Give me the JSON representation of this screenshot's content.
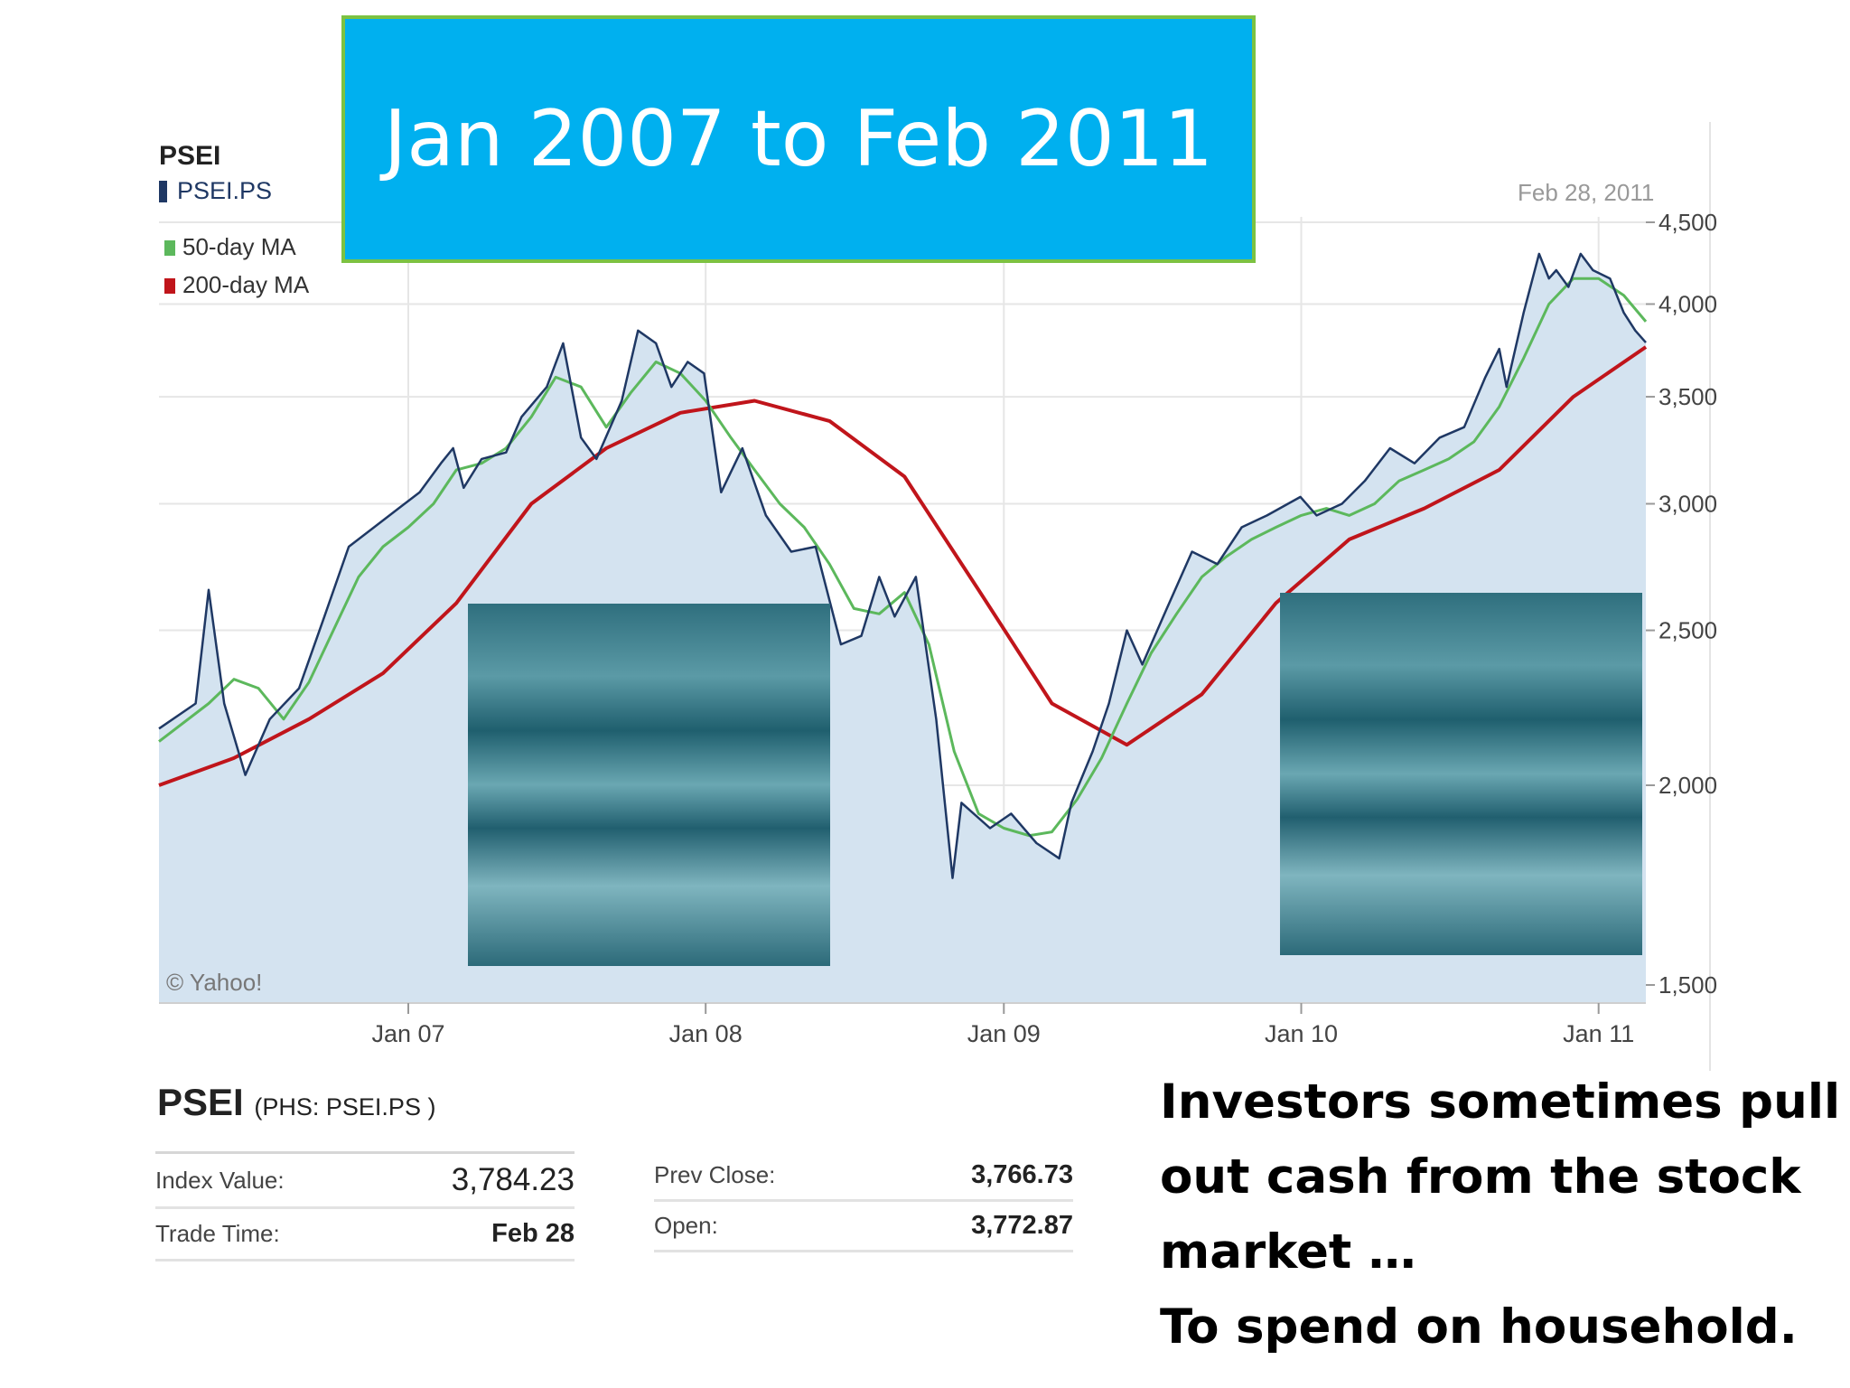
{
  "slide": {
    "title": "Jan 2007 to Feb 2011",
    "caption_lines": [
      "Investors sometimes pull",
      "out cash from the stock",
      "market …",
      "To spend on household."
    ]
  },
  "chart_header": {
    "ticker": "PSEI",
    "symbol": "PSEI.PS",
    "date": "Feb 28, 2011",
    "credit": "© Yahoo!"
  },
  "quote": {
    "name": "PSEI",
    "exchange": "(PHS: PSEI.PS )",
    "index_value_label": "Index Value:",
    "index_value": "3,784.23",
    "trade_time_label": "Trade Time:",
    "trade_time": "Feb 28",
    "prev_close_label": "Prev Close:",
    "prev_close": "3,766.73",
    "open_label": "Open:",
    "open": "3,772.87"
  },
  "chart_data": {
    "type": "line",
    "title": "PSEI",
    "x_tick_labels": [
      "Jan 07",
      "Jan 08",
      "Jan 09",
      "Jan 10",
      "Jan 11"
    ],
    "y_tick_labels": [
      "1,500",
      "2,000",
      "2,500",
      "3,000",
      "3,500",
      "4,000",
      "4,500"
    ],
    "y_ticks": [
      1500,
      2000,
      2500,
      3000,
      3500,
      4000,
      4500
    ],
    "ylim": [
      1500,
      4500
    ],
    "y_scale": "log",
    "xlim": [
      "2006-03-01",
      "2011-02-28"
    ],
    "grid": true,
    "legend_position": "top-left",
    "colors": {
      "price": "#1f3864",
      "ma50": "#5cb85c",
      "ma200": "#c0151b",
      "fill": "#d4e3f0"
    },
    "series": [
      {
        "name": "PSEI.PS",
        "color": "#1f3864",
        "points": [
          [
            "2006-03-01",
            2170
          ],
          [
            "2006-04-15",
            2250
          ],
          [
            "2006-05-01",
            2650
          ],
          [
            "2006-05-20",
            2250
          ],
          [
            "2006-06-15",
            2030
          ],
          [
            "2006-07-15",
            2200
          ],
          [
            "2006-08-20",
            2300
          ],
          [
            "2006-09-20",
            2550
          ],
          [
            "2006-10-20",
            2820
          ],
          [
            "2006-11-20",
            2900
          ],
          [
            "2006-12-20",
            2980
          ],
          [
            "2007-01-15",
            3050
          ],
          [
            "2007-02-10",
            3180
          ],
          [
            "2007-02-25",
            3250
          ],
          [
            "2007-03-10",
            3070
          ],
          [
            "2007-04-01",
            3200
          ],
          [
            "2007-05-01",
            3230
          ],
          [
            "2007-05-20",
            3400
          ],
          [
            "2007-06-20",
            3550
          ],
          [
            "2007-07-10",
            3780
          ],
          [
            "2007-08-01",
            3300
          ],
          [
            "2007-08-20",
            3200
          ],
          [
            "2007-09-20",
            3480
          ],
          [
            "2007-10-10",
            3850
          ],
          [
            "2007-11-01",
            3780
          ],
          [
            "2007-11-20",
            3550
          ],
          [
            "2007-12-10",
            3680
          ],
          [
            "2007-12-30",
            3620
          ],
          [
            "2008-01-20",
            3050
          ],
          [
            "2008-02-15",
            3250
          ],
          [
            "2008-03-15",
            2950
          ],
          [
            "2008-04-15",
            2800
          ],
          [
            "2008-05-15",
            2820
          ],
          [
            "2008-06-15",
            2450
          ],
          [
            "2008-07-10",
            2480
          ],
          [
            "2008-08-01",
            2700
          ],
          [
            "2008-08-20",
            2550
          ],
          [
            "2008-09-15",
            2700
          ],
          [
            "2008-10-10",
            2200
          ],
          [
            "2008-10-30",
            1750
          ],
          [
            "2008-11-10",
            1950
          ],
          [
            "2008-12-15",
            1880
          ],
          [
            "2009-01-10",
            1920
          ],
          [
            "2009-02-10",
            1840
          ],
          [
            "2009-03-10",
            1800
          ],
          [
            "2009-03-25",
            1950
          ],
          [
            "2009-04-20",
            2100
          ],
          [
            "2009-05-10",
            2250
          ],
          [
            "2009-06-01",
            2500
          ],
          [
            "2009-06-20",
            2380
          ],
          [
            "2009-07-20",
            2580
          ],
          [
            "2009-08-20",
            2800
          ],
          [
            "2009-09-20",
            2750
          ],
          [
            "2009-10-20",
            2900
          ],
          [
            "2009-11-20",
            2950
          ],
          [
            "2009-12-31",
            3030
          ],
          [
            "2010-01-20",
            2950
          ],
          [
            "2010-02-20",
            3000
          ],
          [
            "2010-03-20",
            3100
          ],
          [
            "2010-04-20",
            3250
          ],
          [
            "2010-05-20",
            3180
          ],
          [
            "2010-06-20",
            3300
          ],
          [
            "2010-07-20",
            3350
          ],
          [
            "2010-08-15",
            3600
          ],
          [
            "2010-09-01",
            3750
          ],
          [
            "2010-09-10",
            3550
          ],
          [
            "2010-10-01",
            3950
          ],
          [
            "2010-10-20",
            4300
          ],
          [
            "2010-11-01",
            4150
          ],
          [
            "2010-11-10",
            4200
          ],
          [
            "2010-11-25",
            4100
          ],
          [
            "2010-12-10",
            4300
          ],
          [
            "2010-12-25",
            4200
          ],
          [
            "2011-01-15",
            4150
          ],
          [
            "2011-02-01",
            3950
          ],
          [
            "2011-02-15",
            3850
          ],
          [
            "2011-02-28",
            3784
          ]
        ]
      },
      {
        "name": "50-day MA",
        "color": "#5cb85c",
        "points": [
          [
            "2006-03-01",
            2130
          ],
          [
            "2006-05-01",
            2250
          ],
          [
            "2006-06-01",
            2330
          ],
          [
            "2006-07-01",
            2300
          ],
          [
            "2006-08-01",
            2200
          ],
          [
            "2006-09-01",
            2320
          ],
          [
            "2006-10-01",
            2500
          ],
          [
            "2006-11-01",
            2700
          ],
          [
            "2006-12-01",
            2820
          ],
          [
            "2007-01-01",
            2900
          ],
          [
            "2007-02-01",
            3000
          ],
          [
            "2007-03-01",
            3150
          ],
          [
            "2007-04-01",
            3180
          ],
          [
            "2007-05-01",
            3250
          ],
          [
            "2007-06-01",
            3400
          ],
          [
            "2007-07-01",
            3600
          ],
          [
            "2007-08-01",
            3550
          ],
          [
            "2007-09-01",
            3350
          ],
          [
            "2007-10-01",
            3520
          ],
          [
            "2007-11-01",
            3680
          ],
          [
            "2007-12-01",
            3620
          ],
          [
            "2008-01-01",
            3480
          ],
          [
            "2008-02-01",
            3300
          ],
          [
            "2008-03-01",
            3150
          ],
          [
            "2008-04-01",
            3000
          ],
          [
            "2008-05-01",
            2900
          ],
          [
            "2008-06-01",
            2750
          ],
          [
            "2008-07-01",
            2580
          ],
          [
            "2008-08-01",
            2560
          ],
          [
            "2008-09-01",
            2640
          ],
          [
            "2008-10-01",
            2450
          ],
          [
            "2008-11-01",
            2100
          ],
          [
            "2008-12-01",
            1920
          ],
          [
            "2009-01-01",
            1880
          ],
          [
            "2009-02-01",
            1860
          ],
          [
            "2009-03-01",
            1870
          ],
          [
            "2009-04-01",
            1960
          ],
          [
            "2009-05-01",
            2080
          ],
          [
            "2009-06-01",
            2250
          ],
          [
            "2009-07-01",
            2420
          ],
          [
            "2009-08-01",
            2560
          ],
          [
            "2009-09-01",
            2700
          ],
          [
            "2009-10-01",
            2780
          ],
          [
            "2009-11-01",
            2850
          ],
          [
            "2009-12-01",
            2900
          ],
          [
            "2010-01-01",
            2950
          ],
          [
            "2010-02-01",
            2980
          ],
          [
            "2010-03-01",
            2950
          ],
          [
            "2010-04-01",
            3000
          ],
          [
            "2010-05-01",
            3100
          ],
          [
            "2010-06-01",
            3150
          ],
          [
            "2010-07-01",
            3200
          ],
          [
            "2010-08-01",
            3280
          ],
          [
            "2010-09-01",
            3450
          ],
          [
            "2010-10-01",
            3700
          ],
          [
            "2010-11-01",
            4000
          ],
          [
            "2010-12-01",
            4150
          ],
          [
            "2011-01-01",
            4150
          ],
          [
            "2011-02-01",
            4050
          ],
          [
            "2011-02-28",
            3900
          ]
        ]
      },
      {
        "name": "200-day MA",
        "color": "#c0151b",
        "points": [
          [
            "2006-03-01",
            2000
          ],
          [
            "2006-06-01",
            2080
          ],
          [
            "2006-09-01",
            2200
          ],
          [
            "2006-12-01",
            2350
          ],
          [
            "2007-03-01",
            2600
          ],
          [
            "2007-06-01",
            3000
          ],
          [
            "2007-09-01",
            3250
          ],
          [
            "2007-12-01",
            3420
          ],
          [
            "2008-03-01",
            3480
          ],
          [
            "2008-06-01",
            3380
          ],
          [
            "2008-09-01",
            3120
          ],
          [
            "2008-12-01",
            2650
          ],
          [
            "2009-03-01",
            2250
          ],
          [
            "2009-06-01",
            2120
          ],
          [
            "2009-09-01",
            2280
          ],
          [
            "2009-12-01",
            2600
          ],
          [
            "2010-03-01",
            2850
          ],
          [
            "2010-06-01",
            2980
          ],
          [
            "2010-09-01",
            3150
          ],
          [
            "2010-12-01",
            3500
          ],
          [
            "2011-02-28",
            3760
          ]
        ]
      }
    ]
  }
}
